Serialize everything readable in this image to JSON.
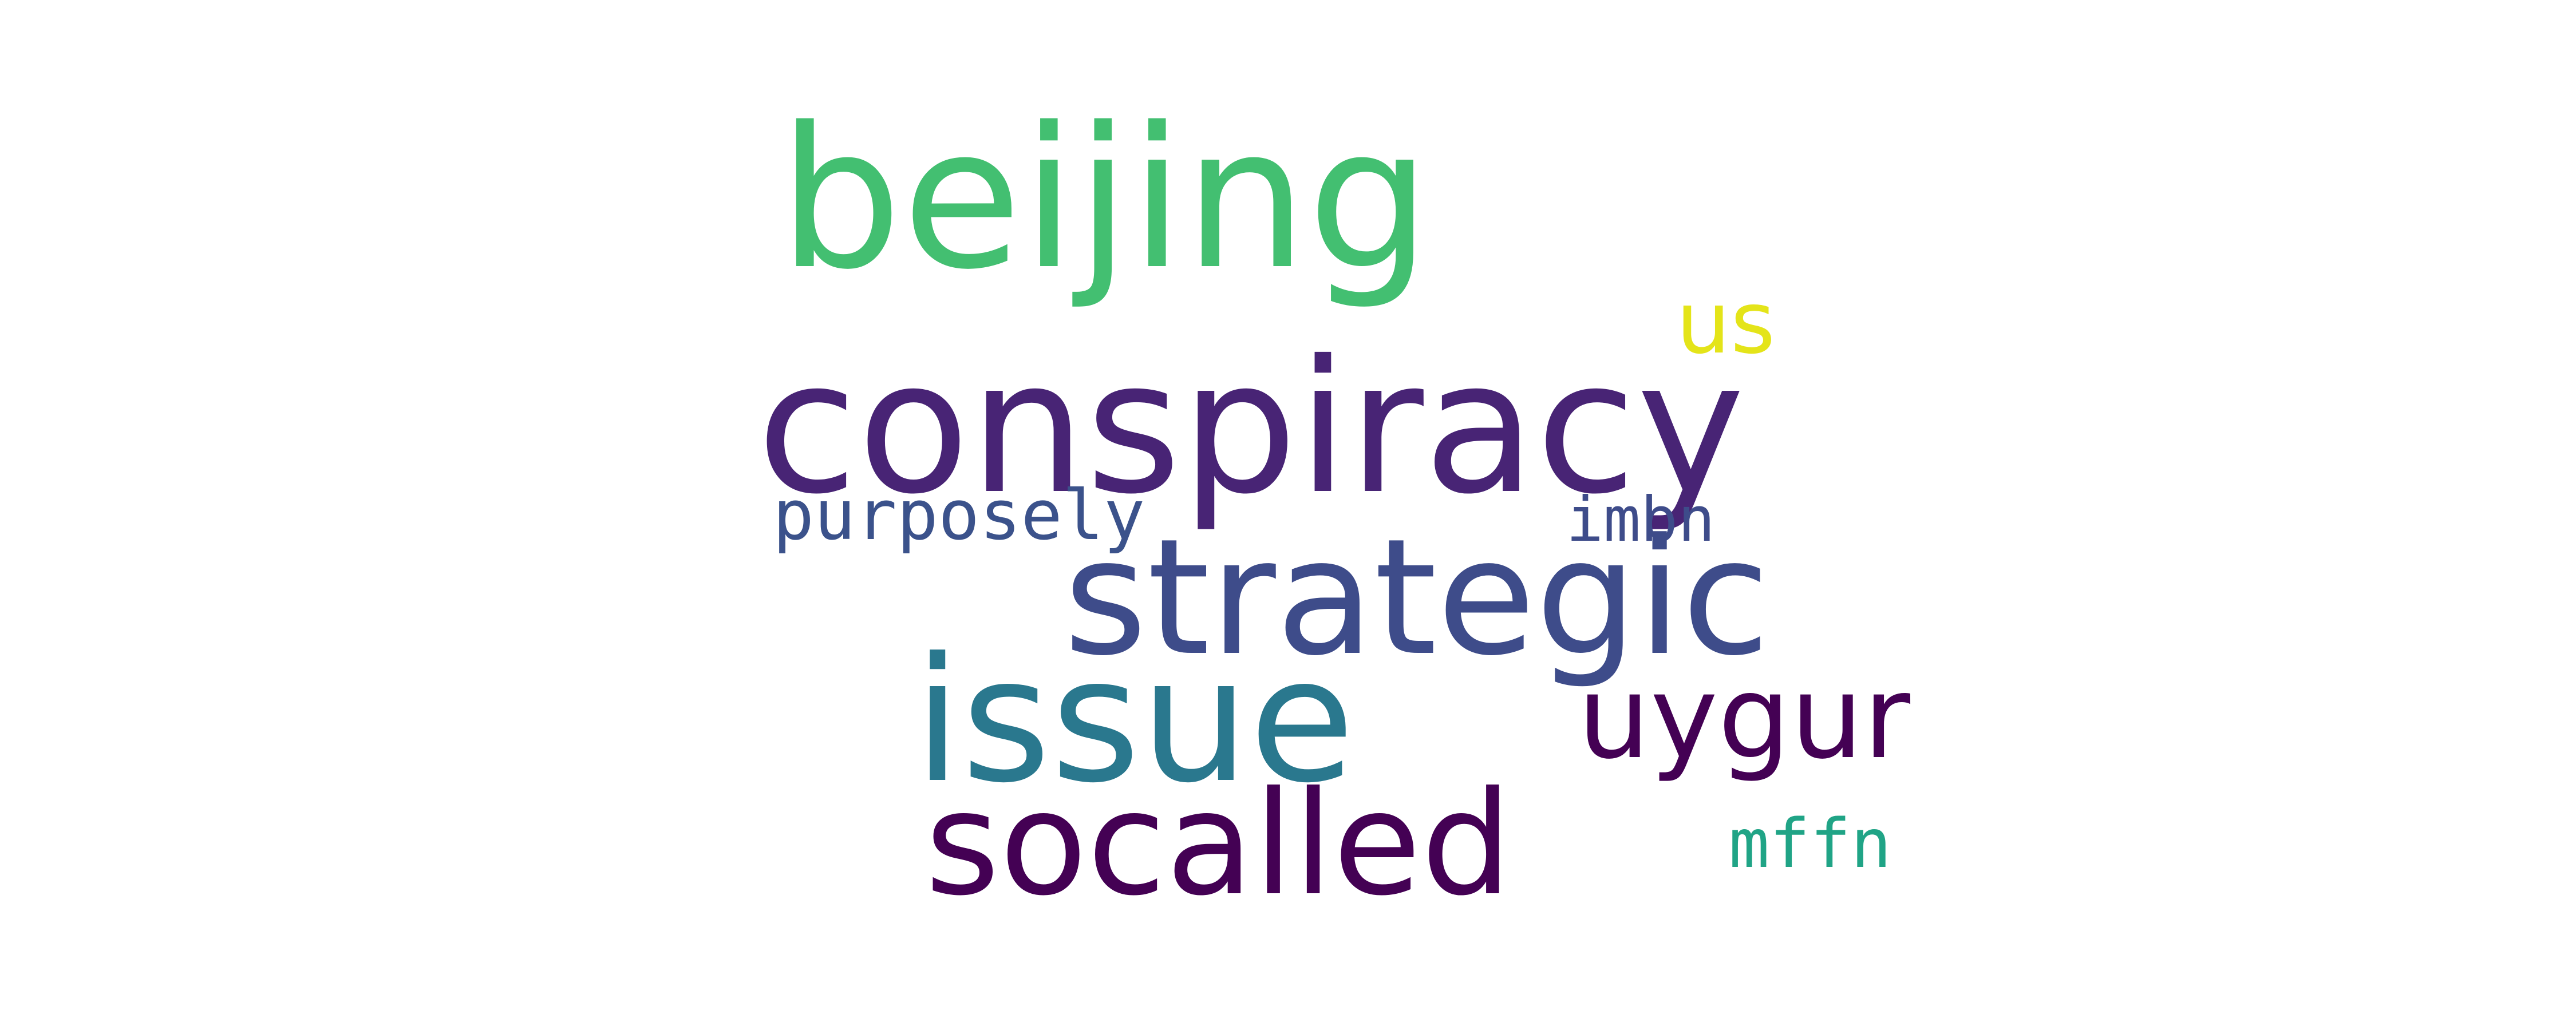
{
  "words": [
    {
      "text": "beijing",
      "color": "#43bf71"
    },
    {
      "text": "us",
      "color": "#e4e419"
    },
    {
      "text": "conspiracy",
      "color": "#482475"
    },
    {
      "text": "purposely",
      "color": "#3b528b"
    },
    {
      "text": "imbn",
      "color": "#3e4c8a"
    },
    {
      "text": "strategic",
      "color": "#3e4c8a"
    },
    {
      "text": "issue",
      "color": "#2a788e"
    },
    {
      "text": "uygur",
      "color": "#440154"
    },
    {
      "text": "socalled",
      "color": "#440154"
    },
    {
      "text": "mffn",
      "color": "#20a486"
    }
  ]
}
